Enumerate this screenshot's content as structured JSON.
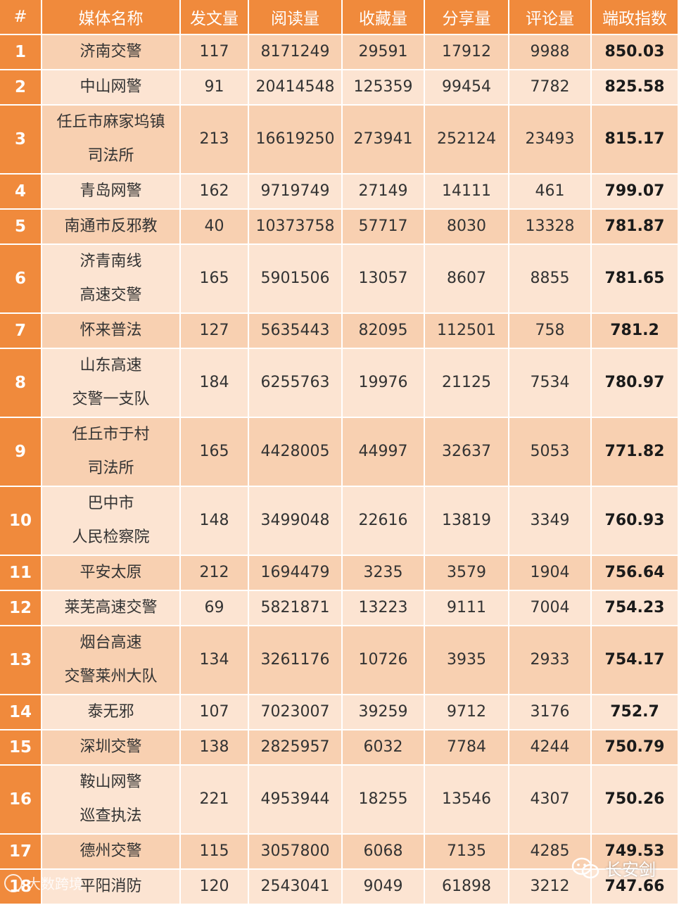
{
  "headers": [
    "#",
    "媒体名称",
    "发文量",
    "阅读量",
    "收藏量",
    "分享量",
    "评论量",
    "端政指数"
  ],
  "rows": [
    {
      "rank": "1",
      "name_lines": [
        "济南交警"
      ],
      "posts": "117",
      "reads": "8171249",
      "favorites": "29591",
      "shares": "17912",
      "comments": "9988",
      "index": "850.03"
    },
    {
      "rank": "2",
      "name_lines": [
        "中山网警"
      ],
      "posts": "91",
      "reads": "20414548",
      "favorites": "125359",
      "shares": "99454",
      "comments": "7782",
      "index": "825.58"
    },
    {
      "rank": "3",
      "name_lines": [
        "任丘市麻家坞镇",
        "司法所"
      ],
      "posts": "213",
      "reads": "16619250",
      "favorites": "273941",
      "shares": "252124",
      "comments": "23493",
      "index": "815.17"
    },
    {
      "rank": "4",
      "name_lines": [
        "青岛网警"
      ],
      "posts": "162",
      "reads": "9719749",
      "favorites": "27149",
      "shares": "14111",
      "comments": "461",
      "index": "799.07"
    },
    {
      "rank": "5",
      "name_lines": [
        "南通市反邪教"
      ],
      "posts": "40",
      "reads": "10373758",
      "favorites": "57717",
      "shares": "8030",
      "comments": "13328",
      "index": "781.87"
    },
    {
      "rank": "6",
      "name_lines": [
        "济青南线",
        "高速交警"
      ],
      "posts": "165",
      "reads": "5901506",
      "favorites": "13057",
      "shares": "8607",
      "comments": "8855",
      "index": "781.65"
    },
    {
      "rank": "7",
      "name_lines": [
        "怀来普法"
      ],
      "posts": "127",
      "reads": "5635443",
      "favorites": "82095",
      "shares": "112501",
      "comments": "758",
      "index": "781.2"
    },
    {
      "rank": "8",
      "name_lines": [
        "山东高速",
        "交警一支队"
      ],
      "posts": "184",
      "reads": "6255763",
      "favorites": "19976",
      "shares": "21125",
      "comments": "7534",
      "index": "780.97"
    },
    {
      "rank": "9",
      "name_lines": [
        "任丘市于村",
        "司法所"
      ],
      "posts": "165",
      "reads": "4428005",
      "favorites": "44997",
      "shares": "32637",
      "comments": "5053",
      "index": "771.82"
    },
    {
      "rank": "10",
      "name_lines": [
        "巴中市",
        "人民检察院"
      ],
      "posts": "148",
      "reads": "3499048",
      "favorites": "22616",
      "shares": "13819",
      "comments": "3349",
      "index": "760.93"
    },
    {
      "rank": "11",
      "name_lines": [
        "平安太原"
      ],
      "posts": "212",
      "reads": "1694479",
      "favorites": "3235",
      "shares": "3579",
      "comments": "1904",
      "index": "756.64"
    },
    {
      "rank": "12",
      "name_lines": [
        "莱芜高速交警"
      ],
      "posts": "69",
      "reads": "5821871",
      "favorites": "13223",
      "shares": "9111",
      "comments": "7004",
      "index": "754.23"
    },
    {
      "rank": "13",
      "name_lines": [
        "烟台高速",
        "交警莱州大队"
      ],
      "posts": "134",
      "reads": "3261176",
      "favorites": "10726",
      "shares": "3935",
      "comments": "2933",
      "index": "754.17"
    },
    {
      "rank": "14",
      "name_lines": [
        "泰无邪"
      ],
      "posts": "107",
      "reads": "7023007",
      "favorites": "39259",
      "shares": "9712",
      "comments": "3176",
      "index": "752.7"
    },
    {
      "rank": "15",
      "name_lines": [
        "深圳交警"
      ],
      "posts": "138",
      "reads": "2825957",
      "favorites": "6032",
      "shares": "7784",
      "comments": "4244",
      "index": "750.79"
    },
    {
      "rank": "16",
      "name_lines": [
        "鞍山网警",
        "巡查执法"
      ],
      "posts": "221",
      "reads": "4953944",
      "favorites": "18255",
      "shares": "13546",
      "comments": "4307",
      "index": "750.26"
    },
    {
      "rank": "17",
      "name_lines": [
        "德州交警"
      ],
      "posts": "115",
      "reads": "3057800",
      "favorites": "6068",
      "shares": "7135",
      "comments": "4285",
      "index": "749.53"
    },
    {
      "rank": "18",
      "name_lines": [
        "平阳消防"
      ],
      "posts": "120",
      "reads": "2543041",
      "favorites": "9049",
      "shares": "61898",
      "comments": "3212",
      "index": "747.66"
    }
  ],
  "watermark": {
    "left_text": "大数跨境",
    "right_text": "长安剑",
    "right_icon": "wechat-icon"
  },
  "colors": {
    "header_bg": "#f08a3c",
    "row_dark": "#f8d0b1",
    "row_light": "#fce4d2",
    "header_text": "#ffffff"
  }
}
